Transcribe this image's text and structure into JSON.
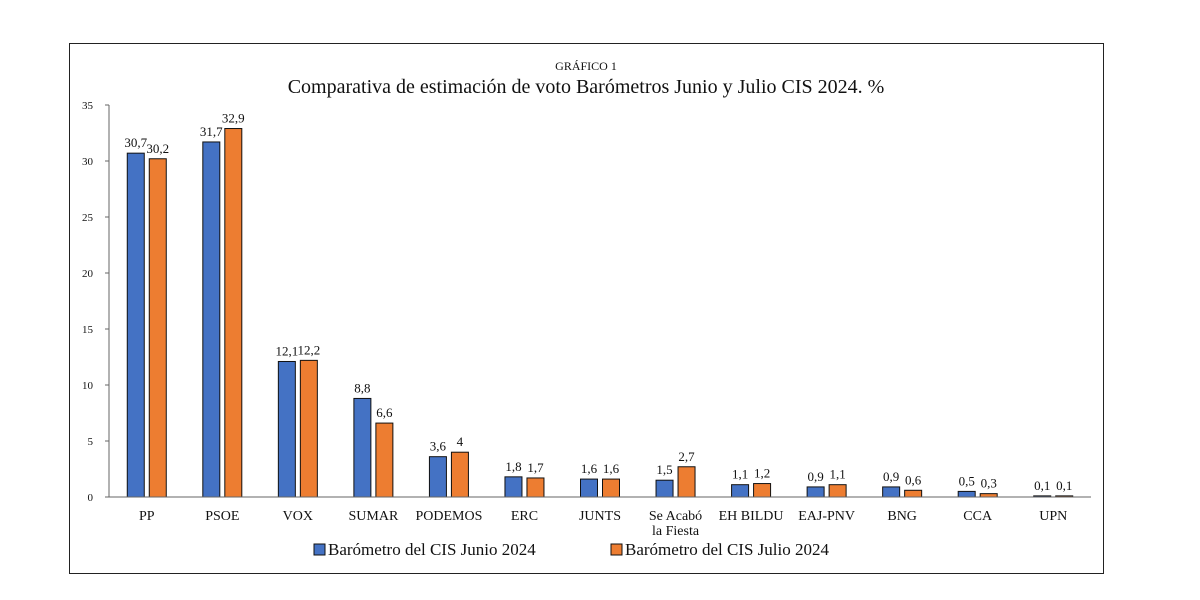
{
  "chart_data": {
    "type": "bar",
    "supertitle": "GRÁFICO 1",
    "title": "Comparativa de estimación de voto Barómetros Junio y Julio CIS 2024. %",
    "categories": [
      [
        "PP"
      ],
      [
        "PSOE"
      ],
      [
        "VOX"
      ],
      [
        "SUMAR"
      ],
      [
        "PODEMOS"
      ],
      [
        "ERC"
      ],
      [
        "JUNTS"
      ],
      [
        "Se Acabó",
        "la Fiesta"
      ],
      [
        "EH BILDU"
      ],
      [
        "EAJ-PNV"
      ],
      [
        "BNG"
      ],
      [
        "CCA"
      ],
      [
        "UPN"
      ]
    ],
    "series": [
      {
        "name": "Barómetro del CIS Junio 2024",
        "color": "#4472C4",
        "values": [
          30.7,
          31.7,
          12.1,
          8.8,
          3.6,
          1.8,
          1.6,
          1.5,
          1.1,
          0.9,
          0.9,
          0.5,
          0.1
        ],
        "labels": [
          "30,7",
          "31,7",
          "12,1",
          "8,8",
          "3,6",
          "1,8",
          "1,6",
          "1,5",
          "1,1",
          "0,9",
          "0,9",
          "0,5",
          "0,1"
        ]
      },
      {
        "name": "Barómetro del CIS Julio 2024",
        "color": "#ED7D31",
        "values": [
          30.2,
          32.9,
          12.2,
          6.6,
          4.0,
          1.7,
          1.6,
          2.7,
          1.2,
          1.1,
          0.6,
          0.3,
          0.1
        ],
        "labels": [
          "30,2",
          "32,9",
          "12,2",
          "6,6",
          "4",
          "1,7",
          "1,6",
          "2,7",
          "1,2",
          "1,1",
          "0,6",
          "0,3",
          "0,1"
        ]
      }
    ],
    "ylim": [
      0,
      35
    ],
    "yticks": [
      0,
      5,
      10,
      15,
      20,
      25,
      30,
      35
    ],
    "grid": false,
    "legend_position": "bottom"
  }
}
